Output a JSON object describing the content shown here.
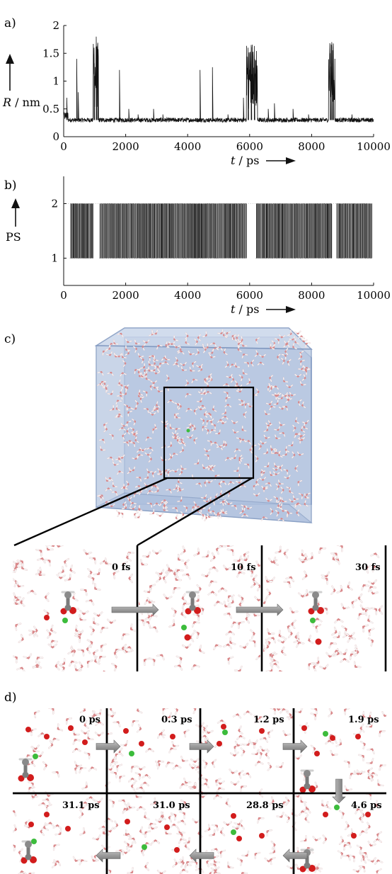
{
  "panel_labels": {
    "a": "a)",
    "b": "b)",
    "c": "c)",
    "d": "d)"
  },
  "chart_data": [
    {
      "type": "line",
      "panel": "a)",
      "xlabel_var": "t",
      "xlabel_unit": "ps",
      "ylabel_var": "R",
      "ylabel_unit": "nm",
      "xlim": [
        0,
        10000
      ],
      "ylim": [
        0,
        2
      ],
      "xticks": [
        0,
        2000,
        4000,
        6000,
        8000,
        10000
      ],
      "yticks": [
        0,
        0.5,
        1,
        1.5,
        2
      ],
      "ytick_labels": [
        "0",
        "0.5",
        "1",
        "1.5",
        "2"
      ],
      "baseline": 0.3,
      "spikes": [
        {
          "x": 100,
          "y": 0.7
        },
        {
          "x": 420,
          "y": 1.4
        },
        {
          "x": 470,
          "y": 0.8
        },
        {
          "x": 980,
          "y": 1.6
        },
        {
          "x": 1050,
          "y": 1.8
        },
        {
          "x": 1100,
          "y": 1.6
        },
        {
          "x": 1800,
          "y": 1.2
        },
        {
          "x": 2100,
          "y": 0.5
        },
        {
          "x": 2400,
          "y": 0.4
        },
        {
          "x": 2900,
          "y": 0.5
        },
        {
          "x": 3200,
          "y": 0.4
        },
        {
          "x": 4400,
          "y": 1.2
        },
        {
          "x": 4800,
          "y": 1.25
        },
        {
          "x": 5300,
          "y": 0.4
        },
        {
          "x": 5800,
          "y": 0.7
        },
        {
          "x": 5950,
          "y": 1.6
        },
        {
          "x": 6050,
          "y": 1.65
        },
        {
          "x": 6150,
          "y": 1.6
        },
        {
          "x": 6600,
          "y": 0.5
        },
        {
          "x": 6800,
          "y": 0.6
        },
        {
          "x": 7400,
          "y": 0.5
        },
        {
          "x": 7900,
          "y": 0.4
        },
        {
          "x": 8600,
          "y": 1.5
        },
        {
          "x": 8650,
          "y": 1.7
        },
        {
          "x": 8700,
          "y": 1.6
        },
        {
          "x": 9300,
          "y": 0.4
        }
      ],
      "bursts": [
        [
          950,
          1120
        ],
        [
          5900,
          6250
        ],
        [
          8550,
          8750
        ]
      ]
    },
    {
      "type": "line",
      "panel": "b)",
      "xlabel_var": "t",
      "xlabel_unit": "ps",
      "ylabel": "PS",
      "xlim": [
        0,
        10000
      ],
      "ylim": [
        0.5,
        2.5
      ],
      "xticks": [
        0,
        2000,
        4000,
        6000,
        8000,
        10000
      ],
      "yticks": [
        1,
        2
      ],
      "switching_intervals": [
        [
          200,
          950
        ],
        [
          1150,
          5900
        ],
        [
          6200,
          8650
        ],
        [
          8800,
          9950
        ]
      ]
    }
  ],
  "panel_c": {
    "frames": [
      {
        "label": "0 fs"
      },
      {
        "label": "10 fs"
      },
      {
        "label": "30 fs"
      }
    ]
  },
  "panel_d": {
    "top_row": [
      "0 ps",
      "0.3 ps",
      "1.2 ps",
      "1.9 ps"
    ],
    "bottom_row": [
      "31.1 ps",
      "31.0 ps",
      "28.8 ps",
      "4.6 ps"
    ]
  },
  "colors": {
    "trace": "#111111",
    "box_fill": "#b4c4de",
    "box_edge": "#7f97bf",
    "water_oxygen": "#d9888a",
    "water_hydrogen": "#ffffff",
    "oxygen_red": "#d21c1c",
    "proton_green": "#3cbc3c",
    "carbon_gray": "#7a7a7a",
    "arrow_gray": "#9c9c9c"
  }
}
